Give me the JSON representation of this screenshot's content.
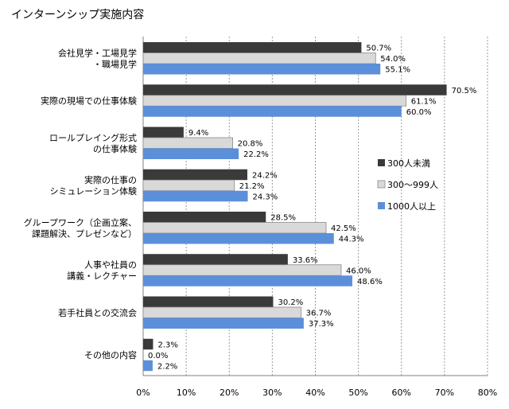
{
  "chart_data": {
    "type": "bar",
    "orientation": "horizontal",
    "title": "インターンシップ実施内容",
    "categories": [
      [
        "会社見学・工場見学",
        "・職場見学"
      ],
      [
        "実際の現場での仕事体験"
      ],
      [
        "ロールプレイング形式",
        "の仕事体験"
      ],
      [
        "実際の仕事の",
        "シミュレーション体験"
      ],
      [
        "グループワーク（企画立案、",
        "課題解決、プレゼンなど）"
      ],
      [
        "人事や社員の",
        "講義・レクチャー"
      ],
      [
        "若手社員との交流会"
      ],
      [
        "その他の内容"
      ]
    ],
    "series": [
      {
        "name": "300人未満",
        "color": "#3a3a3a",
        "values": [
          50.7,
          70.5,
          9.4,
          24.2,
          28.5,
          33.6,
          30.2,
          2.3
        ],
        "labels": [
          "50.7%",
          "70.5%",
          "9.4%",
          "24.2%",
          "28.5%",
          "33.6%",
          "30.2%",
          "2.3%"
        ]
      },
      {
        "name": "300～999人",
        "color": "#d9d9d9",
        "values": [
          54.0,
          61.1,
          20.8,
          21.2,
          42.5,
          46.0,
          36.7,
          0.0
        ],
        "labels": [
          "54.0%",
          "61.1%",
          "20.8%",
          "21.2%",
          "42.5%",
          "46.0%",
          "36.7%",
          "0.0%"
        ]
      },
      {
        "name": "1000人以上",
        "color": "#5b8fd9",
        "values": [
          55.1,
          60.0,
          22.2,
          24.3,
          44.3,
          48.6,
          37.3,
          2.2
        ],
        "labels": [
          "55.1%",
          "60.0%",
          "22.2%",
          "24.3%",
          "44.3%",
          "48.6%",
          "37.3%",
          "2.2%"
        ]
      }
    ],
    "xlim": [
      0,
      80
    ],
    "xticks": [
      "0%",
      "10%",
      "20%",
      "30%",
      "40%",
      "50%",
      "60%",
      "70%",
      "80%"
    ],
    "grid": "vertical-dotted",
    "legend_position": "right"
  }
}
